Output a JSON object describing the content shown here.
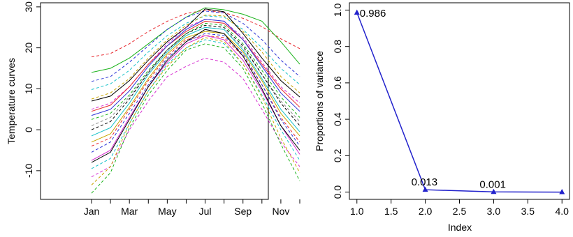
{
  "chart_data": [
    {
      "type": "line",
      "ylabel": "Temperature curves",
      "x_tick_labels": [
        "Jan",
        "Mar",
        "May",
        "Jul",
        "Sep",
        "Nov"
      ],
      "y_ticks": [
        -10,
        0,
        10,
        20,
        30
      ],
      "xlim": [
        1,
        12
      ],
      "ylim": [
        -17,
        31
      ],
      "grid": false,
      "line_colors": [
        "#000000",
        "#e8262c",
        "#1bb31b",
        "#2b33d6",
        "#17c2c8",
        "#d62bd0",
        "#c9a400",
        "#888888"
      ],
      "series": [
        {
          "color": "#e8262c",
          "dashed": true,
          "values": [
            17.8,
            18.6,
            21.0,
            24.0,
            26.5,
            28.4,
            29.2,
            28.6,
            27.2,
            25.2,
            22.2,
            19.8
          ]
        },
        {
          "color": "#1bb31b",
          "dashed": false,
          "values": [
            14.0,
            15.0,
            17.5,
            21.0,
            24.5,
            27.5,
            29.8,
            29.3,
            28.2,
            26.5,
            21.5,
            16.0
          ]
        },
        {
          "color": "#2b33d6",
          "dashed": true,
          "values": [
            11.8,
            13.0,
            16.5,
            20.5,
            24.5,
            27.5,
            29.0,
            28.5,
            26.0,
            22.0,
            17.0,
            13.0
          ]
        },
        {
          "color": "#17c2c8",
          "dashed": true,
          "values": [
            9.8,
            11.2,
            14.5,
            19.0,
            23.0,
            26.0,
            27.8,
            27.5,
            24.5,
            20.0,
            15.0,
            11.0
          ]
        },
        {
          "color": "#c9a400",
          "dashed": true,
          "values": [
            7.5,
            9.0,
            12.5,
            17.5,
            22.0,
            25.5,
            28.0,
            27.8,
            24.0,
            19.0,
            13.0,
            9.0
          ]
        },
        {
          "color": "#000000",
          "dashed": false,
          "values": [
            7.0,
            8.2,
            12.0,
            17.0,
            21.5,
            25.0,
            29.5,
            28.8,
            23.5,
            17.5,
            12.0,
            8.0
          ]
        },
        {
          "color": "#d62bd0",
          "dashed": true,
          "values": [
            5.0,
            6.5,
            10.5,
            16.0,
            21.0,
            25.0,
            27.0,
            26.5,
            22.5,
            16.5,
            10.5,
            6.5
          ]
        },
        {
          "color": "#e8262c",
          "dashed": false,
          "values": [
            4.5,
            6.0,
            10.5,
            16.0,
            20.5,
            24.0,
            26.5,
            26.0,
            22.0,
            16.0,
            10.0,
            5.5
          ]
        },
        {
          "color": "#2b33d6",
          "dashed": false,
          "values": [
            3.5,
            5.0,
            9.5,
            15.5,
            20.5,
            24.5,
            27.0,
            26.5,
            22.0,
            15.5,
            9.0,
            4.5
          ]
        },
        {
          "color": "#1bb31b",
          "dashed": true,
          "values": [
            2.5,
            4.0,
            8.5,
            14.5,
            19.5,
            23.5,
            26.0,
            25.5,
            21.0,
            14.5,
            8.0,
            3.0
          ]
        },
        {
          "color": "#888888",
          "dashed": true,
          "values": [
            1.0,
            3.0,
            8.0,
            14.0,
            19.5,
            23.0,
            25.0,
            24.5,
            20.0,
            13.5,
            7.0,
            2.0
          ]
        },
        {
          "color": "#000000",
          "dashed": true,
          "values": [
            0.0,
            2.0,
            7.5,
            14.0,
            19.5,
            23.5,
            25.5,
            25.0,
            20.5,
            13.5,
            6.5,
            1.0
          ]
        },
        {
          "color": "#17c2c8",
          "dashed": false,
          "values": [
            -1.5,
            0.5,
            6.5,
            13.5,
            19.0,
            23.0,
            25.0,
            24.5,
            19.5,
            12.5,
            5.0,
            -0.5
          ]
        },
        {
          "color": "#c9a400",
          "dashed": false,
          "values": [
            -3.0,
            -1.0,
            5.5,
            12.5,
            18.5,
            22.5,
            24.0,
            23.5,
            19.0,
            12.0,
            4.0,
            -1.5
          ]
        },
        {
          "color": "#e8262c",
          "dashed": true,
          "values": [
            -4.0,
            -2.0,
            5.0,
            12.0,
            18.0,
            22.0,
            23.0,
            22.5,
            18.0,
            11.0,
            3.0,
            -3.0
          ]
        },
        {
          "color": "#2b33d6",
          "dashed": true,
          "values": [
            -5.5,
            -3.0,
            4.0,
            11.0,
            17.5,
            21.5,
            23.5,
            23.0,
            18.5,
            11.0,
            2.5,
            -4.0
          ]
        },
        {
          "color": "#d62bd0",
          "dashed": false,
          "values": [
            -7.5,
            -5.0,
            3.0,
            10.5,
            16.5,
            21.0,
            23.0,
            22.0,
            17.0,
            9.5,
            1.0,
            -6.0
          ]
        },
        {
          "color": "#000000",
          "dashed": false,
          "values": [
            -8.0,
            -5.5,
            2.5,
            10.5,
            17.0,
            21.5,
            24.5,
            23.5,
            18.0,
            10.0,
            1.0,
            -5.0
          ]
        },
        {
          "color": "#17c2c8",
          "dashed": true,
          "values": [
            -9.5,
            -7.0,
            1.5,
            9.5,
            16.0,
            20.0,
            22.0,
            21.0,
            16.0,
            8.5,
            0.0,
            -7.5
          ]
        },
        {
          "color": "#d62bd0",
          "dashed": true,
          "values": [
            -11.5,
            -9.0,
            0.0,
            7.0,
            13.0,
            15.5,
            17.5,
            16.5,
            12.5,
            5.0,
            -3.0,
            -9.0
          ]
        },
        {
          "color": "#1bb31b",
          "dashed": true,
          "values": [
            -15.5,
            -10.5,
            0.5,
            8.5,
            14.5,
            19.5,
            21.0,
            20.0,
            15.0,
            6.5,
            -3.5,
            -12.5
          ]
        },
        {
          "color": "#c9a400",
          "dashed": true,
          "values": [
            -13.5,
            -9.0,
            1.5,
            9.5,
            15.5,
            20.0,
            22.5,
            21.5,
            16.0,
            8.0,
            -2.0,
            -10.5
          ]
        }
      ]
    },
    {
      "type": "line",
      "xlabel": "Index",
      "ylabel": "Proportions of variance",
      "x": [
        1,
        2,
        3,
        4
      ],
      "values": [
        0.986,
        0.013,
        0.001,
        0.0
      ],
      "point_labels": [
        "0.986",
        "0.013",
        "0.001",
        ""
      ],
      "x_ticks": [
        1.0,
        1.5,
        2.0,
        2.5,
        3.0,
        3.5,
        4.0
      ],
      "x_tick_labels": [
        "1.0",
        "1.5",
        "2.0",
        "2.5",
        "3.0",
        "3.5",
        "4.0"
      ],
      "y_ticks": [
        0.0,
        0.2,
        0.4,
        0.6,
        0.8,
        1.0
      ],
      "y_tick_labels": [
        "0.0",
        "0.2",
        "0.4",
        "0.6",
        "0.8",
        "1.0"
      ],
      "xlim": [
        0.89,
        4.11
      ],
      "ylim": [
        -0.04,
        1.04
      ],
      "line_color": "#2222cc",
      "marker": "triangle",
      "grid": false
    }
  ]
}
